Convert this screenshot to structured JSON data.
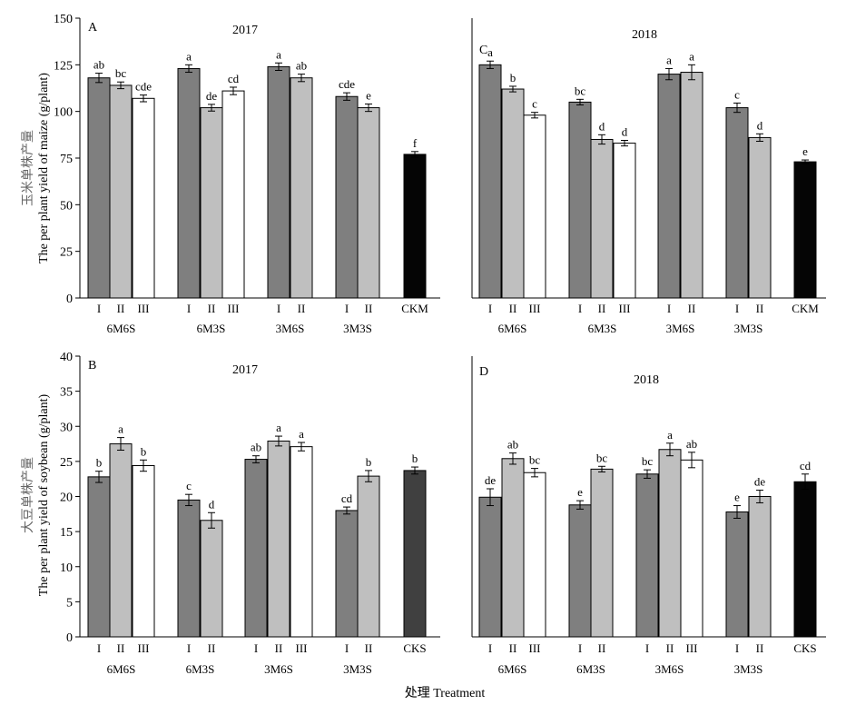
{
  "figure": {
    "y_label_top_cn": "玉米单株产量",
    "y_label_top_en": "The per plant yield of maize (g/plant)",
    "y_label_bottom_cn": "大豆单株产量",
    "y_label_bottom_en": "The per plant yield of soybean (g/plant)",
    "x_label": "处理 Treatment"
  },
  "colors": {
    "I": "#7f7f7f",
    "II": "#bfbfbf",
    "III": "#ffffff",
    "CKM": "#050505",
    "CKS_2017": "#404040",
    "CKS_2018": "#050505"
  },
  "chart_data": [
    {
      "type": "bar",
      "panel": "A",
      "title": "2017",
      "ylim": [
        0,
        150
      ],
      "yticks": [
        0,
        25,
        50,
        75,
        100,
        125,
        150
      ],
      "groups": [
        {
          "name": "6M6S",
          "bars": [
            {
              "label": "I",
              "value": 118,
              "err": 2.5,
              "sig": "ab"
            },
            {
              "label": "II",
              "value": 114,
              "err": 1.8,
              "sig": "bc"
            },
            {
              "label": "III",
              "value": 107,
              "err": 1.8,
              "sig": "cde"
            }
          ]
        },
        {
          "name": "6M3S",
          "bars": [
            {
              "label": "I",
              "value": 123,
              "err": 2.0,
              "sig": "a"
            },
            {
              "label": "II",
              "value": 102,
              "err": 1.8,
              "sig": "de"
            },
            {
              "label": "III",
              "value": 111,
              "err": 2.0,
              "sig": "cd"
            }
          ]
        },
        {
          "name": "3M6S",
          "bars": [
            {
              "label": "I",
              "value": 124,
              "err": 2.0,
              "sig": "a"
            },
            {
              "label": "II",
              "value": 118,
              "err": 2.0,
              "sig": "ab"
            }
          ]
        },
        {
          "name": "3M3S",
          "bars": [
            {
              "label": "I",
              "value": 108,
              "err": 2.0,
              "sig": "cde"
            },
            {
              "label": "II",
              "value": 102,
              "err": 2.0,
              "sig": "e"
            }
          ]
        },
        {
          "name": "",
          "bars": [
            {
              "label": "CKM",
              "value": 77,
              "err": 1.5,
              "sig": "f",
              "color": "CKM"
            }
          ]
        }
      ]
    },
    {
      "type": "bar",
      "panel": "C",
      "title": "2018",
      "ylim": [
        0,
        150
      ],
      "yticks": [],
      "groups": [
        {
          "name": "6M6S",
          "bars": [
            {
              "label": "I",
              "value": 125,
              "err": 2.0,
              "sig": "a"
            },
            {
              "label": "II",
              "value": 112,
              "err": 1.5,
              "sig": "b"
            },
            {
              "label": "III",
              "value": 98,
              "err": 1.5,
              "sig": "c"
            }
          ]
        },
        {
          "name": "6M3S",
          "bars": [
            {
              "label": "I",
              "value": 105,
              "err": 1.5,
              "sig": "bc"
            },
            {
              "label": "II",
              "value": 85,
              "err": 2.5,
              "sig": "d"
            },
            {
              "label": "III",
              "value": 83,
              "err": 1.5,
              "sig": "d"
            }
          ]
        },
        {
          "name": "3M6S",
          "bars": [
            {
              "label": "I",
              "value": 120,
              "err": 3.0,
              "sig": "a"
            },
            {
              "label": "II",
              "value": 121,
              "err": 4.0,
              "sig": "a"
            }
          ]
        },
        {
          "name": "3M3S",
          "bars": [
            {
              "label": "I",
              "value": 102,
              "err": 2.5,
              "sig": "c"
            },
            {
              "label": "II",
              "value": 86,
              "err": 2.0,
              "sig": "d"
            }
          ]
        },
        {
          "name": "",
          "bars": [
            {
              "label": "CKM",
              "value": 73,
              "err": 1.0,
              "sig": "e",
              "color": "CKM"
            }
          ]
        }
      ]
    },
    {
      "type": "bar",
      "panel": "B",
      "title": "2017",
      "ylim": [
        0,
        40
      ],
      "yticks": [
        0,
        5,
        10,
        15,
        20,
        25,
        30,
        35,
        40
      ],
      "groups": [
        {
          "name": "6M6S",
          "bars": [
            {
              "label": "I",
              "value": 22.8,
              "err": 0.8,
              "sig": "b"
            },
            {
              "label": "II",
              "value": 27.5,
              "err": 0.9,
              "sig": "a"
            },
            {
              "label": "III",
              "value": 24.4,
              "err": 0.8,
              "sig": "b"
            }
          ]
        },
        {
          "name": "6M3S",
          "bars": [
            {
              "label": "I",
              "value": 19.5,
              "err": 0.8,
              "sig": "c"
            },
            {
              "label": "II",
              "value": 16.6,
              "err": 1.1,
              "sig": "d"
            }
          ]
        },
        {
          "name": "3M6S",
          "bars": [
            {
              "label": "I",
              "value": 25.3,
              "err": 0.5,
              "sig": "ab"
            },
            {
              "label": "II",
              "value": 27.9,
              "err": 0.7,
              "sig": "a"
            },
            {
              "label": "III",
              "value": 27.1,
              "err": 0.6,
              "sig": "a"
            }
          ]
        },
        {
          "name": "3M3S",
          "bars": [
            {
              "label": "I",
              "value": 18.0,
              "err": 0.5,
              "sig": "cd"
            },
            {
              "label": "II",
              "value": 22.9,
              "err": 0.8,
              "sig": "b"
            }
          ]
        },
        {
          "name": "",
          "bars": [
            {
              "label": "CKS",
              "value": 23.7,
              "err": 0.5,
              "sig": "b",
              "color": "CKS_2017"
            }
          ]
        }
      ]
    },
    {
      "type": "bar",
      "panel": "D",
      "title": "2018",
      "ylim": [
        0,
        40
      ],
      "yticks": [],
      "groups": [
        {
          "name": "6M6S",
          "bars": [
            {
              "label": "I",
              "value": 19.9,
              "err": 1.2,
              "sig": "de"
            },
            {
              "label": "II",
              "value": 25.4,
              "err": 0.8,
              "sig": "ab"
            },
            {
              "label": "III",
              "value": 23.4,
              "err": 0.6,
              "sig": "bc"
            }
          ]
        },
        {
          "name": "6M3S",
          "bars": [
            {
              "label": "I",
              "value": 18.8,
              "err": 0.6,
              "sig": "e"
            },
            {
              "label": "II",
              "value": 23.9,
              "err": 0.4,
              "sig": "bc"
            }
          ]
        },
        {
          "name": "3M6S",
          "bars": [
            {
              "label": "I",
              "value": 23.2,
              "err": 0.6,
              "sig": "bc"
            },
            {
              "label": "II",
              "value": 26.7,
              "err": 0.9,
              "sig": "a"
            },
            {
              "label": "III",
              "value": 25.2,
              "err": 1.1,
              "sig": "ab"
            }
          ]
        },
        {
          "name": "3M3S",
          "bars": [
            {
              "label": "I",
              "value": 17.8,
              "err": 0.9,
              "sig": "e"
            },
            {
              "label": "II",
              "value": 20.0,
              "err": 0.9,
              "sig": "de"
            }
          ]
        },
        {
          "name": "",
          "bars": [
            {
              "label": "CKS",
              "value": 22.1,
              "err": 1.1,
              "sig": "cd",
              "color": "CKS_2018"
            }
          ]
        }
      ]
    }
  ]
}
